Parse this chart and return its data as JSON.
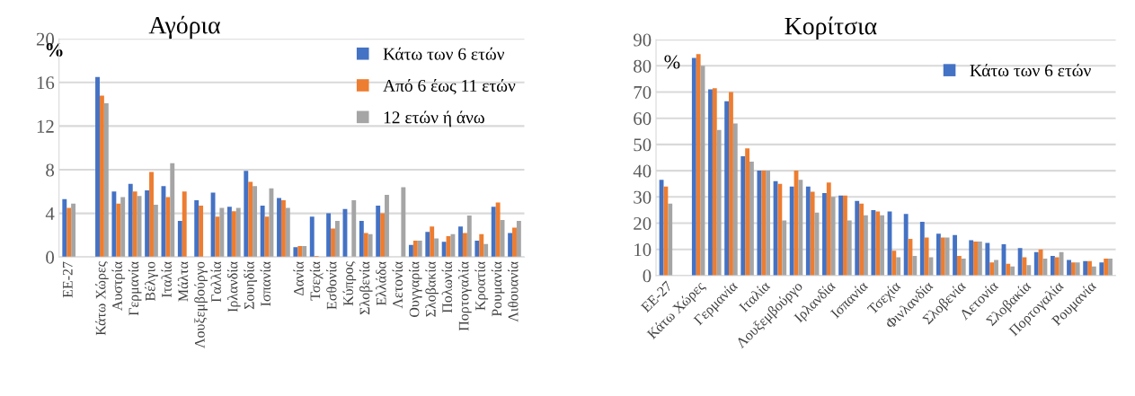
{
  "chart_data": [
    {
      "type": "bar",
      "title": "Αγόρια",
      "ylabel": "%",
      "categories": [
        "ΕΕ-27",
        null,
        "Κάτω Χώρες",
        "Αυστρία",
        "Γερμανία",
        "Βέλγιο",
        "Ιταλία",
        "Μάλτα",
        "Λουξεμβούργο",
        "Γαλλία",
        "Ιρλανδία",
        "Σουηδία",
        "Ισπανία",
        null,
        "Δανία",
        "Τσεχία",
        "Εσθονία",
        "Κύπρος",
        "Σλοβενία",
        "Ελλάδα",
        "Λετονία",
        "Ουγγαρία",
        "Σλοβακία",
        "Πολωνία",
        "Πορτογαλία",
        "Κροατία",
        "Ρουμανία",
        "Λιθουανία"
      ],
      "series": [
        {
          "name": "Κάτω των 6 ετών",
          "color": "#4472c4",
          "values": [
            5.3,
            null,
            16.5,
            6.0,
            6.7,
            6.1,
            6.5,
            3.3,
            5.2,
            5.9,
            4.6,
            7.9,
            4.7,
            5.4,
            0.9,
            3.7,
            4.0,
            4.4,
            3.3,
            4.7,
            0,
            1.1,
            2.3,
            1.4,
            2.8,
            1.5,
            4.6,
            2.2
          ]
        },
        {
          "name": "Από 6 έως 11 ετών",
          "color": "#ed7d31",
          "values": [
            4.5,
            null,
            14.8,
            4.9,
            6.0,
            7.8,
            5.5,
            6.0,
            4.7,
            3.7,
            4.2,
            6.9,
            3.7,
            5.2,
            1.0,
            0.1,
            2.6,
            0,
            2.2,
            4.0,
            0,
            1.5,
            2.8,
            1.9,
            2.2,
            2.1,
            5.0,
            2.7
          ]
        },
        {
          "name": "12 ετών ή άνω",
          "color": "#a5a5a5",
          "values": [
            4.9,
            null,
            14.1,
            5.5,
            5.6,
            4.8,
            8.6,
            0,
            0,
            4.5,
            4.5,
            6.5,
            6.3,
            4.5,
            1.0,
            0,
            3.3,
            5.2,
            2.1,
            5.7,
            6.4,
            1.5,
            1.7,
            2.1,
            3.8,
            1.2,
            3.4,
            3.3
          ]
        }
      ],
      "ylim": [
        0,
        20
      ],
      "yticks": [
        0,
        4,
        8,
        12,
        16,
        20
      ],
      "grid": "y",
      "legend": "top right"
    },
    {
      "type": "bar",
      "title": "Κορίτσια",
      "ylabel": "%",
      "categories": [
        "ΕΕ-27",
        null,
        "Κάτω Χώρες",
        null,
        "Γερμανία",
        null,
        "Ιταλία",
        null,
        "Λουξεμβούργο",
        null,
        "Ιρλανδία",
        null,
        "Ισπανία",
        null,
        "Τσεχία",
        null,
        "Φινλανδία",
        null,
        "Σλοβενία",
        null,
        "Λετονία",
        null,
        "Σλοβακία",
        null,
        "Πορτογαλία",
        null,
        "Ρουμανία",
        null
      ],
      "series": [
        {
          "name": "Κάτω των 6 ετών",
          "color": "#4472c4",
          "values": [
            36.5,
            null,
            83,
            71,
            66.5,
            45.5,
            40,
            36,
            34,
            34,
            31.5,
            30.5,
            28.5,
            25,
            24.5,
            23.5,
            20.5,
            16,
            15.5,
            13.5,
            12.5,
            12,
            10.5,
            9,
            7.5,
            6,
            5.5,
            5
          ]
        },
        {
          "color": "#ed7d31",
          "values": [
            34,
            null,
            84.5,
            71.5,
            70,
            48.5,
            40,
            35,
            40,
            32,
            35.5,
            30.5,
            27.5,
            24.5,
            9.5,
            14,
            14.5,
            14.5,
            7.5,
            13,
            5,
            4.5,
            7,
            10,
            7,
            5,
            5.5,
            6.5
          ]
        },
        {
          "color": "#a5a5a5",
          "values": [
            27.5,
            null,
            80,
            55.5,
            58,
            43.5,
            40,
            21,
            36.5,
            24,
            30,
            21,
            23,
            23,
            7,
            7.5,
            7,
            14.5,
            6.5,
            13,
            6,
            3.5,
            4,
            6.5,
            9,
            5,
            3.5,
            6.5
          ]
        }
      ],
      "ylim": [
        0,
        90
      ],
      "yticks": [
        0,
        10,
        20,
        30,
        40,
        50,
        60,
        70,
        80,
        90
      ],
      "grid": "y",
      "legend": "top right"
    }
  ]
}
